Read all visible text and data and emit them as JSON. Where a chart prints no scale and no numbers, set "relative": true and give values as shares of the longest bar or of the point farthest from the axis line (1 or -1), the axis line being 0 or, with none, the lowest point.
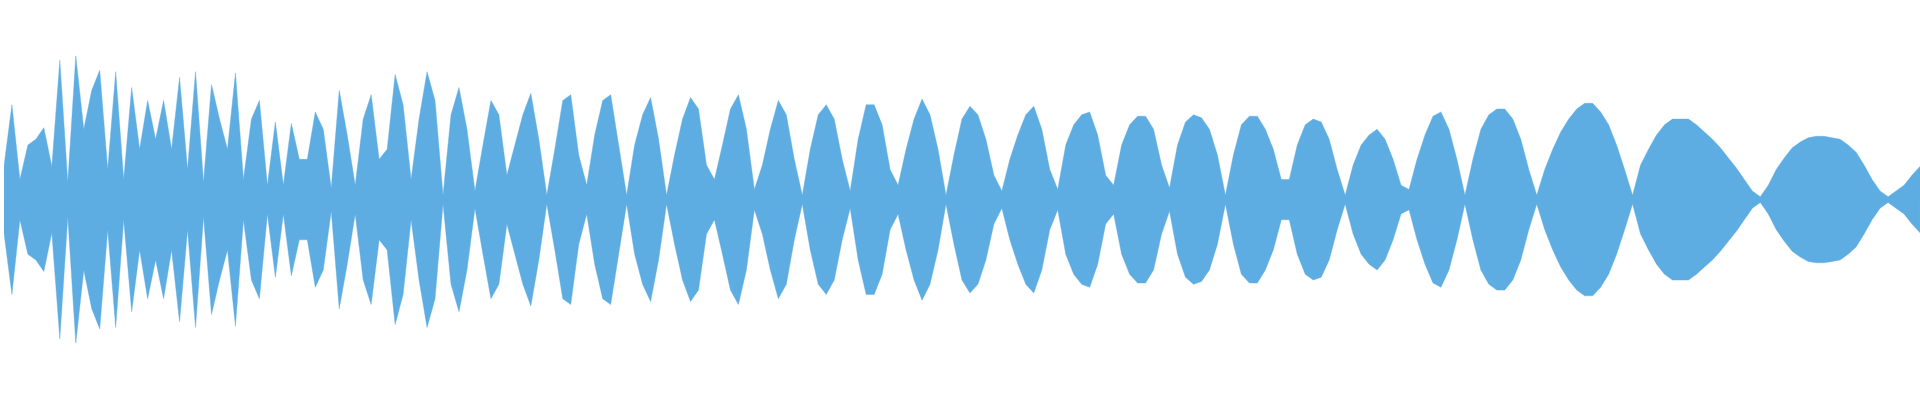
{
  "chart_data": {
    "type": "area",
    "relative": true,
    "ref_lines": [
      {
        "axis": "y",
        "value": 0,
        "color": "#5dade2"
      }
    ],
    "categories": [
      null,
      null,
      null,
      null,
      null,
      null,
      null,
      null,
      null,
      null,
      null,
      null,
      null,
      null,
      null,
      null,
      null,
      null,
      null,
      null,
      null,
      null,
      null,
      null,
      null,
      null,
      null,
      null,
      null,
      null,
      null,
      null,
      null,
      null,
      null,
      null,
      null,
      null,
      null,
      null,
      null,
      null,
      null,
      null,
      null,
      null,
      null,
      null,
      null,
      null,
      null,
      null,
      null,
      null,
      null,
      null,
      null,
      null,
      null,
      null,
      null,
      null,
      null,
      null,
      null,
      null,
      null,
      null,
      null,
      null,
      null,
      null,
      null,
      null,
      null,
      null,
      null,
      null,
      null,
      null,
      null,
      null,
      null,
      null,
      null,
      null,
      null,
      null,
      null,
      null,
      null,
      null,
      null,
      null,
      null,
      null,
      null,
      null,
      null,
      null,
      null,
      null,
      null,
      null,
      null,
      null,
      null,
      null,
      null,
      null,
      null,
      null,
      null,
      null,
      null,
      null,
      null,
      null,
      null,
      null,
      null,
      null,
      null,
      null,
      null,
      null,
      null,
      null,
      null,
      null,
      null,
      null,
      null,
      null,
      null,
      null,
      null,
      null,
      null,
      null,
      null,
      null,
      null,
      null,
      null,
      null,
      null,
      null,
      null,
      null,
      null,
      null,
      null,
      null,
      null,
      null,
      null,
      null,
      null,
      null,
      null,
      null,
      null,
      null,
      null,
      null,
      null,
      null,
      null,
      null,
      null,
      null,
      null,
      null,
      null,
      null,
      null,
      null,
      null,
      null,
      null,
      null,
      null,
      null,
      null,
      null,
      null,
      null,
      null,
      null,
      null,
      null,
      null,
      null,
      null,
      null,
      null,
      null,
      null,
      null,
      null,
      null,
      null,
      null,
      null,
      null,
      null,
      null,
      null,
      null,
      null,
      null,
      null,
      null,
      null,
      null,
      null,
      null,
      null,
      null,
      null,
      null,
      null,
      null,
      null,
      null,
      null,
      null,
      null,
      null,
      null,
      null,
      null,
      null,
      null,
      null,
      null,
      null,
      null,
      null,
      null
    ],
    "series": [
      {
        "color": "#5dade2",
        "values": [
          0.23,
          0.66,
          0.14,
          0.38,
          0.42,
          0.5,
          0.23,
          0.97,
          0.12,
          1,
          0.49,
          0.76,
          0.9,
          0.21,
          0.89,
          0.14,
          0.78,
          0.35,
          0.69,
          0.42,
          0.69,
          0.35,
          0.85,
          0.21,
          0.89,
          0.12,
          0.8,
          0.56,
          0.35,
          0.88,
          0.14,
          0.56,
          0.69,
          0.1,
          0.54,
          0.1,
          0.53,
          0.28,
          0.28,
          0.61,
          0.49,
          0.08,
          0.76,
          0.45,
          0.1,
          0.56,
          0.73,
          0.28,
          0.35,
          0.87,
          0.66,
          0.14,
          0.56,
          0.89,
          0.69,
          0.03,
          0.59,
          0.78,
          0.49,
          0.06,
          0.38,
          0.69,
          0.59,
          0.17,
          0.38,
          0.59,
          0.74,
          0.42,
          0.03,
          0.35,
          0.69,
          0.73,
          0.31,
          0.1,
          0.45,
          0.69,
          0.73,
          0.38,
          0.03,
          0.38,
          0.59,
          0.71,
          0.42,
          0.03,
          0.31,
          0.56,
          0.71,
          0.63,
          0.24,
          0.14,
          0.38,
          0.63,
          0.73,
          0.49,
          0.07,
          0.24,
          0.49,
          0.69,
          0.59,
          0.28,
          0.03,
          0.35,
          0.59,
          0.66,
          0.56,
          0.28,
          0.06,
          0.42,
          0.66,
          0.66,
          0.52,
          0.21,
          0.1,
          0.35,
          0.56,
          0.7,
          0.59,
          0.35,
          0.03,
          0.31,
          0.56,
          0.65,
          0.59,
          0.42,
          0.17,
          0.06,
          0.28,
          0.45,
          0.59,
          0.65,
          0.49,
          0.21,
          0.07,
          0.38,
          0.52,
          0.59,
          0.61,
          0.45,
          0.17,
          0.1,
          0.38,
          0.52,
          0.58,
          0.58,
          0.49,
          0.24,
          0.08,
          0.38,
          0.54,
          0.59,
          0.57,
          0.49,
          0.31,
          0.03,
          0.31,
          0.52,
          0.58,
          0.58,
          0.49,
          0.35,
          0.14,
          0.14,
          0.38,
          0.52,
          0.56,
          0.54,
          0.42,
          0.21,
          0.03,
          0.24,
          0.38,
          0.45,
          0.49,
          0.42,
          0.28,
          0.1,
          0.07,
          0.28,
          0.45,
          0.58,
          0.61,
          0.49,
          0.28,
          0.03,
          0.28,
          0.49,
          0.59,
          0.63,
          0.63,
          0.56,
          0.42,
          0.21,
          0.03,
          0.21,
          0.35,
          0.47,
          0.56,
          0.63,
          0.67,
          0.67,
          0.61,
          0.52,
          0.38,
          0.21,
          0.03,
          0.24,
          0.35,
          0.45,
          0.52,
          0.56,
          0.56,
          0.56,
          0.52,
          0.47,
          0.42,
          0.36,
          0.29,
          0.22,
          0.14,
          0.06,
          0.02,
          0.1,
          0.21,
          0.29,
          0.36,
          0.4,
          0.43,
          0.44,
          0.44,
          0.43,
          0.42,
          0.38,
          0.33,
          0.24,
          0.14,
          0.06,
          0.02,
          0.06,
          0.1,
          0.17,
          0.23
        ]
      },
      {
        "color": "#5dade2",
        "values": [
          -0.23,
          -0.66,
          -0.14,
          -0.38,
          -0.42,
          -0.5,
          -0.23,
          -0.97,
          -0.12,
          -1,
          -0.49,
          -0.76,
          -0.9,
          -0.21,
          -0.89,
          -0.14,
          -0.78,
          -0.35,
          -0.69,
          -0.42,
          -0.69,
          -0.35,
          -0.85,
          -0.21,
          -0.89,
          -0.12,
          -0.8,
          -0.56,
          -0.35,
          -0.88,
          -0.14,
          -0.56,
          -0.69,
          -0.1,
          -0.54,
          -0.1,
          -0.53,
          -0.28,
          -0.28,
          -0.61,
          -0.49,
          -0.08,
          -0.76,
          -0.45,
          -0.1,
          -0.56,
          -0.73,
          -0.28,
          -0.35,
          -0.87,
          -0.66,
          -0.14,
          -0.56,
          -0.89,
          -0.69,
          -0.03,
          -0.59,
          -0.78,
          -0.49,
          -0.06,
          -0.38,
          -0.69,
          -0.59,
          -0.17,
          -0.38,
          -0.59,
          -0.74,
          -0.42,
          -0.03,
          -0.35,
          -0.69,
          -0.73,
          -0.31,
          -0.1,
          -0.45,
          -0.69,
          -0.73,
          -0.38,
          -0.03,
          -0.38,
          -0.59,
          -0.71,
          -0.42,
          -0.03,
          -0.31,
          -0.56,
          -0.71,
          -0.63,
          -0.24,
          -0.14,
          -0.38,
          -0.63,
          -0.73,
          -0.49,
          -0.07,
          -0.24,
          -0.49,
          -0.69,
          -0.59,
          -0.28,
          -0.03,
          -0.35,
          -0.59,
          -0.66,
          -0.56,
          -0.28,
          -0.06,
          -0.42,
          -0.66,
          -0.66,
          -0.52,
          -0.21,
          -0.1,
          -0.35,
          -0.56,
          -0.7,
          -0.59,
          -0.35,
          -0.03,
          -0.31,
          -0.56,
          -0.65,
          -0.59,
          -0.42,
          -0.17,
          -0.06,
          -0.28,
          -0.45,
          -0.59,
          -0.65,
          -0.49,
          -0.21,
          -0.07,
          -0.38,
          -0.52,
          -0.59,
          -0.61,
          -0.45,
          -0.17,
          -0.1,
          -0.38,
          -0.52,
          -0.58,
          -0.58,
          -0.49,
          -0.24,
          -0.08,
          -0.38,
          -0.54,
          -0.59,
          -0.57,
          -0.49,
          -0.31,
          -0.03,
          -0.31,
          -0.52,
          -0.58,
          -0.58,
          -0.49,
          -0.35,
          -0.14,
          -0.14,
          -0.38,
          -0.52,
          -0.56,
          -0.54,
          -0.42,
          -0.21,
          -0.03,
          -0.24,
          -0.38,
          -0.45,
          -0.49,
          -0.42,
          -0.28,
          -0.1,
          -0.07,
          -0.28,
          -0.45,
          -0.58,
          -0.61,
          -0.49,
          -0.28,
          -0.03,
          -0.28,
          -0.49,
          -0.59,
          -0.63,
          -0.63,
          -0.56,
          -0.42,
          -0.21,
          -0.03,
          -0.21,
          -0.35,
          -0.47,
          -0.56,
          -0.63,
          -0.67,
          -0.67,
          -0.61,
          -0.52,
          -0.38,
          -0.21,
          -0.03,
          -0.24,
          -0.35,
          -0.45,
          -0.52,
          -0.56,
          -0.56,
          -0.56,
          -0.52,
          -0.47,
          -0.42,
          -0.36,
          -0.29,
          -0.22,
          -0.14,
          -0.06,
          -0.02,
          -0.1,
          -0.21,
          -0.29,
          -0.36,
          -0.4,
          -0.43,
          -0.44,
          -0.44,
          -0.43,
          -0.42,
          -0.38,
          -0.33,
          -0.24,
          -0.14,
          -0.06,
          -0.02,
          -0.06,
          -0.1,
          -0.17,
          -0.23
        ]
      }
    ]
  }
}
